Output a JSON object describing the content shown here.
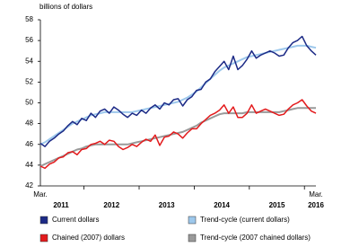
{
  "chart_data": {
    "type": "line",
    "y_label": "billions of dollars",
    "categories": [
      "Mar.",
      null,
      null,
      null,
      null,
      null,
      null,
      null,
      null,
      null,
      null,
      null,
      null,
      null,
      null,
      null,
      null,
      null,
      null,
      null,
      null,
      null,
      null,
      null,
      null,
      null,
      null,
      null,
      null,
      null,
      null,
      null,
      null,
      null,
      null,
      null,
      null,
      null,
      null,
      null,
      null,
      null,
      null,
      null,
      null,
      null,
      null,
      null,
      null,
      null,
      null,
      null,
      null,
      null,
      null,
      null,
      null,
      null,
      null,
      null,
      "Mar."
    ],
    "years": [
      "2011",
      "2012",
      "2013",
      "2014",
      "2015",
      "2016"
    ],
    "ylim": [
      42,
      58
    ],
    "yticks": [
      42,
      44,
      46,
      48,
      50,
      52,
      54,
      56,
      58
    ],
    "grid": false,
    "series": [
      {
        "name": "Current dollars",
        "color": "#1c2a86",
        "values": [
          46.1,
          45.8,
          46.3,
          46.6,
          47.0,
          47.3,
          47.8,
          48.2,
          47.9,
          48.5,
          48.3,
          49.0,
          48.6,
          49.2,
          49.4,
          49.0,
          49.6,
          49.3,
          48.9,
          48.6,
          49.0,
          48.8,
          49.3,
          49.0,
          49.5,
          49.8,
          49.4,
          50.0,
          49.8,
          50.3,
          50.4,
          49.7,
          50.3,
          50.6,
          51.2,
          51.3,
          52.0,
          52.3,
          53.0,
          53.5,
          54.0,
          53.2,
          54.5,
          53.2,
          53.6,
          54.2,
          55.0,
          54.3,
          54.6,
          54.8,
          55.0,
          54.8,
          54.5,
          54.6,
          55.3,
          55.8,
          56.0,
          56.4,
          55.5,
          55.0,
          54.6
        ]
      },
      {
        "name": "Trend-cycle (current dollars)",
        "color": "#9dc8ec",
        "values": [
          46.0,
          46.2,
          46.5,
          46.8,
          47.1,
          47.4,
          47.7,
          48.0,
          48.2,
          48.4,
          48.6,
          48.8,
          48.9,
          49.0,
          49.1,
          49.1,
          49.1,
          49.1,
          49.1,
          49.1,
          49.1,
          49.2,
          49.3,
          49.4,
          49.5,
          49.6,
          49.7,
          49.8,
          49.9,
          50.0,
          50.1,
          50.3,
          50.5,
          50.8,
          51.1,
          51.5,
          51.9,
          52.3,
          52.7,
          53.1,
          53.4,
          53.6,
          53.8,
          54.0,
          54.2,
          54.4,
          54.5,
          54.6,
          54.7,
          54.8,
          54.9,
          55.0,
          55.1,
          55.2,
          55.3,
          55.4,
          55.5,
          55.5,
          55.5,
          55.4,
          55.3
        ]
      },
      {
        "name": "Chained (2007) dollars",
        "color": "#e31a1c",
        "values": [
          43.9,
          43.7,
          44.1,
          44.3,
          44.7,
          44.8,
          45.2,
          45.3,
          45.0,
          45.5,
          45.6,
          46.0,
          46.1,
          46.3,
          46.0,
          46.4,
          46.3,
          45.8,
          45.5,
          45.7,
          46.0,
          45.8,
          46.2,
          46.5,
          46.3,
          46.9,
          45.9,
          46.7,
          46.8,
          47.2,
          47.0,
          46.6,
          47.1,
          47.5,
          47.5,
          48.0,
          48.4,
          48.8,
          49.0,
          49.3,
          49.8,
          49.0,
          49.6,
          48.6,
          48.6,
          49.0,
          49.8,
          49.0,
          49.2,
          49.4,
          49.2,
          49.0,
          48.8,
          48.9,
          49.4,
          49.8,
          50.0,
          50.3,
          49.7,
          49.2,
          49.0
        ]
      },
      {
        "name": "Trend-cycle (2007 chained dollars)",
        "color": "#9a9a9a",
        "values": [
          43.9,
          44.1,
          44.3,
          44.5,
          44.7,
          44.9,
          45.1,
          45.3,
          45.5,
          45.6,
          45.8,
          45.9,
          46.0,
          46.0,
          46.0,
          46.0,
          46.0,
          46.0,
          46.0,
          46.0,
          46.1,
          46.2,
          46.3,
          46.4,
          46.5,
          46.6,
          46.7,
          46.8,
          46.9,
          47.0,
          47.1,
          47.2,
          47.4,
          47.6,
          47.8,
          48.1,
          48.3,
          48.5,
          48.7,
          48.9,
          49.0,
          49.0,
          49.0,
          49.0,
          49.0,
          49.1,
          49.1,
          49.1,
          49.1,
          49.1,
          49.1,
          49.1,
          49.1,
          49.2,
          49.3,
          49.4,
          49.5,
          49.5,
          49.5,
          49.5,
          49.5
        ]
      }
    ]
  }
}
